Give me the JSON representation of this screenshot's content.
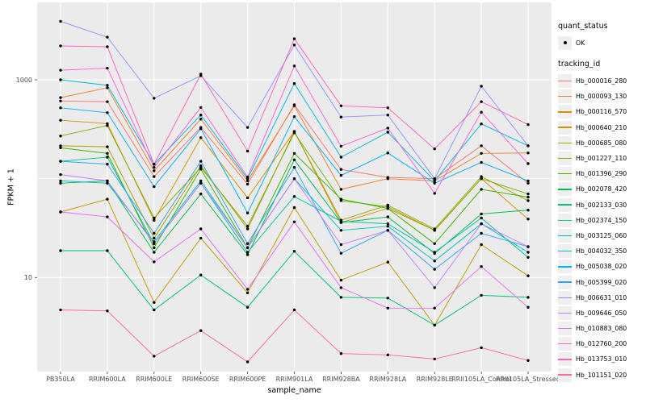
{
  "chart_data": {
    "type": "line",
    "title": "",
    "x_label": "sample_name",
    "y_label": "FPKM + 1",
    "y_scale": "log10",
    "y_domain_approx": [
      1.1,
      5500
    ],
    "grid": "on",
    "legend_position": "right",
    "marker": "black point",
    "colors": {
      "panel_bg": "#EBEBEB",
      "grid": "#FFFFFF",
      "point": "#000000",
      "tick": "#333333",
      "tick_label": "#4D4D4D",
      "legend_key_bg": "#EFEFEF"
    },
    "y_ticks": [
      {
        "value": 1000,
        "label": "1000"
      },
      {
        "value": 10,
        "label": "10"
      }
    ],
    "y_minor_gridlines": [
      100
    ],
    "categories": [
      "PB350LA",
      "RRIM600LA",
      "RRIM600LE",
      "RRIM600SE",
      "RRIM600PE",
      "RRIM901LA",
      "RRIM928BA",
      "RRIM928LA",
      "RRIM928LE",
      "RRII105LA_Control",
      "RRII105LA_Stressed"
    ],
    "series": [
      {
        "name": "Hb_000016_280",
        "color": "#F8766D",
        "values": [
          610,
          600,
          105,
          330,
          88,
          560,
          124,
          103,
          100,
          215,
          90
        ]
      },
      {
        "name": "Hb_000093_130",
        "color": "#EA8331",
        "values": [
          660,
          830,
          120,
          400,
          95,
          545,
          78,
          100,
          95,
          180,
          182
        ]
      },
      {
        "name": "Hb_000116_570",
        "color": "#D89000",
        "values": [
          390,
          360,
          38,
          260,
          64,
          300,
          36,
          50,
          30,
          100,
          39
        ]
      },
      {
        "name": "Hb_000640_210",
        "color": "#C09B00",
        "values": [
          46,
          62,
          5.6,
          25,
          7,
          51,
          9.4,
          14.3,
          3.3,
          21.5,
          10.4
        ]
      },
      {
        "name": "Hb_000685_080",
        "color": "#A3A500",
        "values": [
          215,
          210,
          25,
          135,
          31,
          300,
          38,
          54,
          31,
          105,
          60
        ]
      },
      {
        "name": "Hb_001227_110",
        "color": "#7CAE00",
        "values": [
          270,
          345,
          40,
          130,
          33,
          290,
          60,
          52,
          30,
          100,
          70
        ]
      },
      {
        "name": "Hb_001396_290",
        "color": "#39B600",
        "values": [
          205,
          180,
          20,
          125,
          20,
          180,
          62,
          50,
          22,
          78,
          65
        ]
      },
      {
        "name": "Hb_002078_420",
        "color": "#00BB4E",
        "values": [
          90,
          95,
          18,
          70,
          17,
          155,
          36,
          41,
          17.5,
          44,
          48
        ]
      },
      {
        "name": "Hb_002133_030",
        "color": "#00BF7D",
        "values": [
          18.7,
          18.7,
          4.7,
          10.6,
          5,
          18.4,
          6.3,
          6.2,
          3.3,
          6.6,
          6.3
        ]
      },
      {
        "name": "Hb_002374_150",
        "color": "#00C1A3",
        "values": [
          150,
          165,
          22,
          90,
          18,
          66,
          37,
          35,
          18,
          40,
          16
        ]
      },
      {
        "name": "Hb_003125_060",
        "color": "#00BFC4",
        "values": [
          95,
          90,
          23,
          95,
          20,
          100,
          30,
          33,
          14.7,
          35,
          18
        ]
      },
      {
        "name": "Hb_004032_350",
        "color": "#00BAE0",
        "values": [
          1000,
          880,
          140,
          440,
          100,
          915,
          165,
          295,
          95,
          358,
          215
        ]
      },
      {
        "name": "Hb_005038_020",
        "color": "#00B0F6",
        "values": [
          520,
          465,
          83,
          320,
          45,
          424,
          108,
          182,
          90,
          146,
          95
        ]
      },
      {
        "name": "Hb_005399_020",
        "color": "#35A2FF",
        "values": [
          150,
          140,
          28,
          150,
          22,
          130,
          17.6,
          30,
          12.1,
          28,
          20.5
        ]
      },
      {
        "name": "Hb_006631_010",
        "color": "#9590FF",
        "values": [
          3900,
          2700,
          650,
          1100,
          330,
          2250,
          420,
          440,
          100,
          860,
          215
        ]
      },
      {
        "name": "Hb_009646_050",
        "color": "#C77CFF",
        "values": [
          110,
          95,
          22,
          90,
          20,
          100,
          21.5,
          30,
          7.9,
          35,
          20.5
        ]
      },
      {
        "name": "Hb_010883_080",
        "color": "#E76BF3",
        "values": [
          46,
          41,
          14.4,
          31,
          7.6,
          36.5,
          7.9,
          4.9,
          4.9,
          12.9,
          5
        ]
      },
      {
        "name": "Hb_012760_200",
        "color": "#FA62DB",
        "values": [
          1250,
          1310,
          130,
          525,
          104,
          1380,
          213,
          325,
          71,
          470,
          142
        ]
      },
      {
        "name": "Hb_013753_010",
        "color": "#FF62BC",
        "values": [
          2200,
          2160,
          140,
          1140,
          190,
          2600,
          545,
          520,
          200,
          600,
          352
        ]
      },
      {
        "name": "Hb_101151_020",
        "color": "#FF6A98",
        "values": [
          4.7,
          4.6,
          1.6,
          2.9,
          1.4,
          4.7,
          1.7,
          1.65,
          1.5,
          1.95,
          1.45
        ]
      }
    ],
    "legend": {
      "quant_status_title": "quant_status",
      "quant_status_items": [
        "OK"
      ],
      "tracking_id_title": "tracking_id"
    }
  }
}
